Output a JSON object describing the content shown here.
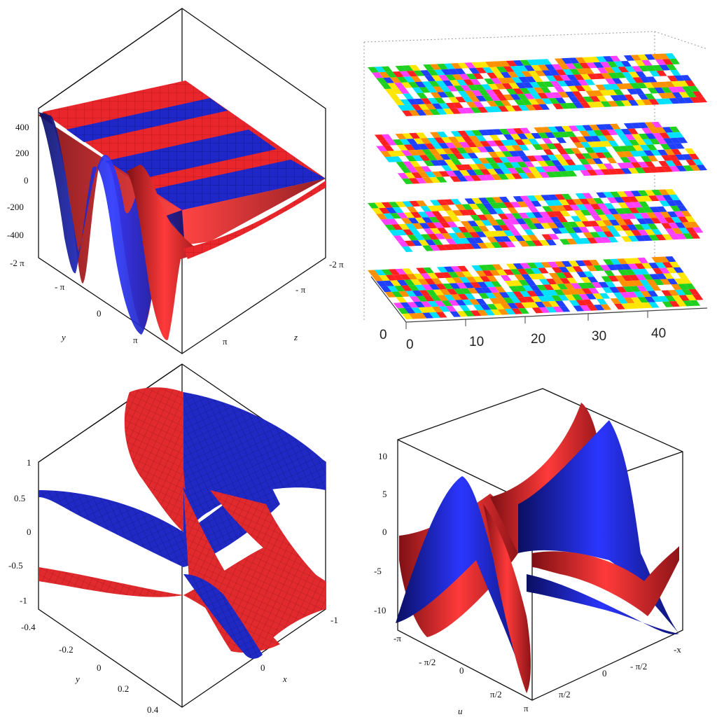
{
  "colors": {
    "red": "#e8262b",
    "blue": "#1f27c8",
    "dark_red": "#8e1418",
    "dark_blue": "#101470",
    "grid_red": "#ff4a4a",
    "grid_blue": "#3a44ff"
  },
  "chart_data": [
    {
      "type": "surface3d",
      "panel": "top-left",
      "zlim": [
        -450,
        500
      ],
      "z_ticks": [
        "400",
        "200",
        "0",
        "-200",
        "-400"
      ],
      "y_ticks": [
        "-2 π",
        "- π",
        "0",
        "π"
      ],
      "x_ticks": [
        "-2 π",
        "- π",
        "π"
      ],
      "ylabel": "y",
      "xlabel": "z",
      "series": [
        {
          "color": "red"
        },
        {
          "color": "blue"
        }
      ]
    },
    {
      "type": "layered-heatmap",
      "panel": "top-right",
      "layers": 4,
      "x_ticks": [
        "0",
        "10",
        "20",
        "30",
        "40"
      ],
      "y_ticks": [
        "0"
      ],
      "palette": [
        "#ff2020",
        "#ffe600",
        "#00e0ff",
        "#2040ff",
        "#ff40ff",
        "#20d020",
        "#ff9000",
        "#ffffff"
      ]
    },
    {
      "type": "surface3d",
      "panel": "bottom-left",
      "zlim": [
        -1,
        1
      ],
      "z_ticks": [
        "1",
        "0.5",
        "0",
        "-0.5",
        "-1"
      ],
      "y_ticks": [
        "-0.4",
        "-0.2",
        "0",
        "0.2",
        "0.4"
      ],
      "x_ticks": [
        "-1",
        "0"
      ],
      "ylabel": "y",
      "xlabel": "x",
      "series": [
        {
          "color": "red"
        },
        {
          "color": "blue"
        }
      ]
    },
    {
      "type": "surface3d",
      "panel": "bottom-right",
      "zlim": [
        -12,
        12
      ],
      "z_ticks": [
        "10",
        "5",
        "0",
        "-5",
        "-10"
      ],
      "y_ticks": [
        "-π",
        "- π/2",
        "0",
        "π/2",
        "π"
      ],
      "x_ticks": [
        "-x",
        "- π/2",
        "0",
        "π/2"
      ],
      "ylabel": "u",
      "series": [
        {
          "color": "red"
        },
        {
          "color": "blue"
        }
      ]
    }
  ]
}
